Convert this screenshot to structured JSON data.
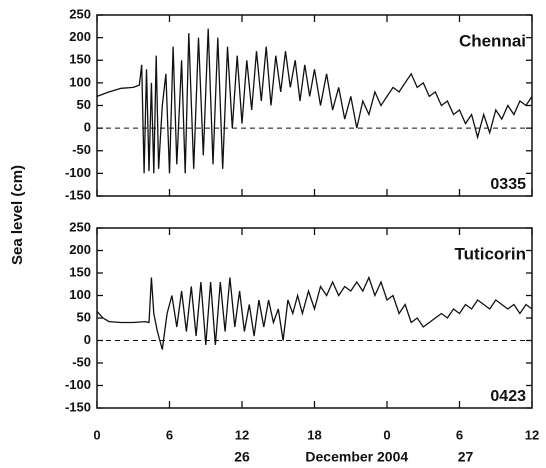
{
  "chart_data": [
    {
      "type": "line",
      "title": "Chennai",
      "annotation": "0335",
      "ylabel": "Sea level (cm)",
      "xlim": [
        0,
        36
      ],
      "ylim": [
        -150,
        250
      ],
      "yticks": [
        -150,
        -100,
        -50,
        0,
        50,
        100,
        150,
        200,
        250
      ],
      "color": "#111111",
      "zero_line": true,
      "x": [
        0,
        1,
        2,
        3,
        3.5,
        3.7,
        3.9,
        4.1,
        4.3,
        4.5,
        4.7,
        4.9,
        5.1,
        5.4,
        5.7,
        6,
        6.3,
        6.6,
        7,
        7.3,
        7.6,
        8,
        8.4,
        8.8,
        9.2,
        9.6,
        10,
        10.4,
        10.8,
        11.2,
        11.6,
        12,
        12.4,
        12.8,
        13.2,
        13.6,
        14,
        14.4,
        14.8,
        15.2,
        15.6,
        16,
        16.4,
        16.8,
        17.2,
        17.6,
        18,
        18.5,
        19,
        19.5,
        20,
        20.5,
        21,
        21.5,
        22,
        22.5,
        23,
        23.5,
        24,
        24.5,
        25,
        25.5,
        26,
        26.5,
        27,
        27.5,
        28,
        28.5,
        29,
        29.5,
        30,
        30.5,
        31,
        31.5,
        32,
        32.5,
        33,
        33.5,
        34,
        34.5,
        35,
        35.5,
        36
      ],
      "values": [
        70,
        80,
        88,
        90,
        95,
        140,
        -100,
        130,
        -95,
        100,
        -100,
        160,
        -90,
        50,
        120,
        -100,
        180,
        -80,
        150,
        -100,
        210,
        -90,
        200,
        -60,
        220,
        -80,
        200,
        -90,
        180,
        0,
        160,
        10,
        150,
        40,
        170,
        60,
        180,
        50,
        160,
        80,
        170,
        90,
        150,
        60,
        140,
        70,
        130,
        50,
        120,
        40,
        90,
        20,
        70,
        0,
        60,
        30,
        80,
        50,
        70,
        90,
        80,
        100,
        120,
        90,
        100,
        70,
        80,
        50,
        60,
        30,
        40,
        10,
        30,
        -20,
        30,
        -10,
        40,
        20,
        50,
        30,
        60,
        50,
        70
      ]
    },
    {
      "type": "line",
      "title": "Tuticorin",
      "annotation": "0423",
      "xlim": [
        0,
        36
      ],
      "ylim": [
        -150,
        250
      ],
      "yticks": [
        -150,
        -100,
        -50,
        0,
        50,
        100,
        150,
        200,
        250
      ],
      "xticks": [
        0,
        6,
        12,
        18,
        {
          "value": 24,
          "label": "0"
        },
        {
          "value": 30,
          "label": "6"
        },
        {
          "value": 36,
          "label": "12"
        }
      ],
      "date_labels": [
        "26",
        "December 2004",
        "27"
      ],
      "color": "#111111",
      "zero_line": true,
      "x": [
        0,
        0.5,
        1,
        2,
        3,
        4,
        4.3,
        4.5,
        4.7,
        5,
        5.4,
        5.8,
        6.2,
        6.6,
        7,
        7.4,
        7.8,
        8.2,
        8.6,
        9,
        9.4,
        9.8,
        10.2,
        10.6,
        11,
        11.4,
        11.8,
        12.2,
        12.6,
        13,
        13.4,
        13.8,
        14.2,
        14.6,
        15,
        15.4,
        15.8,
        16.2,
        16.6,
        17,
        17.5,
        18,
        18.5,
        19,
        19.5,
        20,
        20.5,
        21,
        21.5,
        22,
        22.5,
        23,
        23.5,
        24,
        24.5,
        25,
        25.5,
        26,
        26.5,
        27,
        27.5,
        28,
        28.5,
        29,
        29.5,
        30,
        30.5,
        31,
        31.5,
        32,
        32.5,
        33,
        33.5,
        34,
        34.5,
        35,
        35.5,
        36
      ],
      "values": [
        65,
        50,
        42,
        40,
        40,
        42,
        40,
        140,
        60,
        20,
        -20,
        60,
        100,
        30,
        110,
        20,
        120,
        10,
        130,
        -10,
        130,
        -10,
        130,
        20,
        140,
        30,
        110,
        20,
        80,
        10,
        90,
        30,
        90,
        40,
        70,
        0,
        90,
        60,
        100,
        60,
        110,
        70,
        120,
        100,
        130,
        100,
        120,
        110,
        130,
        110,
        140,
        100,
        130,
        90,
        100,
        60,
        80,
        40,
        50,
        30,
        40,
        50,
        60,
        50,
        70,
        60,
        80,
        70,
        90,
        80,
        70,
        90,
        80,
        70,
        80,
        60,
        80,
        70
      ]
    }
  ]
}
